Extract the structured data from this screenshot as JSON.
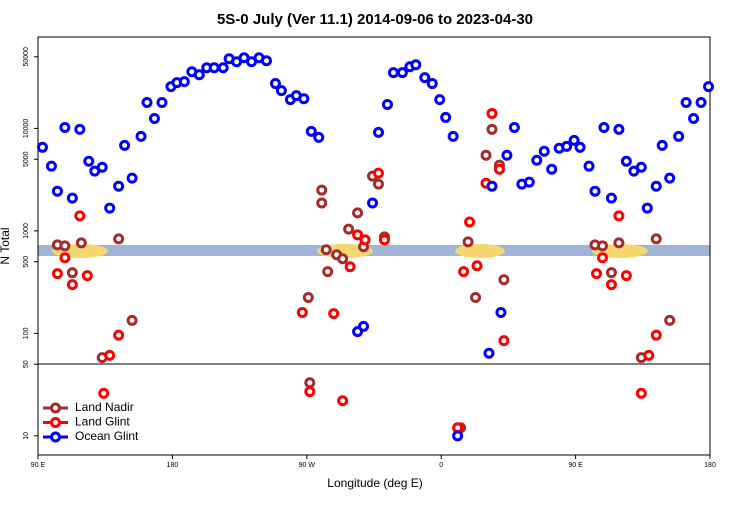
{
  "chart_data": {
    "type": "scatter",
    "title": "5S-0 July (Ver 11.1)   2014-09-06 to 2023-04-30",
    "xlabel": "Longitude (deg E)",
    "ylabel": "N Total",
    "xlim": [
      90,
      540
    ],
    "ylim": [
      6.5,
      78000
    ],
    "log_y": true,
    "xticks": [
      {
        "value": 90,
        "label": "90 E"
      },
      {
        "value": 180,
        "label": "180"
      },
      {
        "value": 270,
        "label": "90 W"
      },
      {
        "value": 360,
        "label": "0"
      },
      {
        "value": 450,
        "label": "90 E"
      },
      {
        "value": 540,
        "label": "180"
      }
    ],
    "yticks": [
      10,
      50,
      100,
      500,
      1000,
      5000,
      10000,
      50000
    ],
    "legend": "lower left",
    "series": [
      {
        "name": "Land Nadir",
        "color": "#a52a2a",
        "x": [
          103,
          108,
          113,
          119,
          133,
          144,
          153,
          271,
          272,
          280,
          280,
          283,
          284,
          290,
          294,
          298,
          304,
          308,
          314,
          318,
          322,
          373,
          378,
          383,
          390,
          394,
          399,
          402,
          463,
          468,
          474,
          479,
          494,
          504,
          513
        ],
        "values": [
          731,
          715,
          391,
          764,
          58,
          836,
          134,
          224,
          33,
          1870,
          2500,
          654,
          400,
          585,
          535,
          1040,
          1500,
          700,
          3420,
          2860,
          875,
          12,
          782,
          224,
          5470,
          9800,
          4380,
          334,
          731,
          715,
          391,
          764,
          58,
          836,
          134
        ]
      },
      {
        "name": "Land Glint",
        "color": "#ff0000",
        "x": [
          103,
          108,
          113,
          118,
          123,
          134,
          138,
          144,
          267,
          272,
          288,
          294,
          299,
          304,
          309,
          318,
          322,
          371,
          375,
          379,
          384,
          390,
          394,
          399,
          402,
          464,
          468,
          474,
          479,
          484,
          494,
          499,
          504
        ],
        "values": [
          383,
          547,
          299,
          1400,
          366,
          26,
          61,
          96,
          160,
          27,
          156,
          22,
          447,
          914,
          818,
          3660,
          818,
          12,
          400,
          1220,
          457,
          2920,
          14000,
          4000,
          85,
          383,
          547,
          299,
          1400,
          366,
          26,
          61,
          96
        ]
      },
      {
        "name": "Ocean Glint",
        "color": "#0000ff",
        "x": [
          93,
          99,
          103,
          108,
          113,
          118,
          124,
          128,
          133,
          138,
          144,
          148,
          153,
          159,
          163,
          168,
          173,
          179,
          183,
          188,
          193,
          198,
          203,
          208,
          214,
          218,
          223,
          228,
          233,
          238,
          243,
          249,
          253,
          259,
          263,
          268,
          273,
          278,
          304,
          308,
          314,
          318,
          324,
          328,
          334,
          339,
          343,
          349,
          354,
          359,
          363,
          368,
          371,
          392,
          394,
          400,
          404,
          409,
          414,
          419,
          424,
          429,
          434,
          439,
          444,
          449,
          453,
          459,
          463,
          469,
          474,
          479,
          484,
          489,
          494,
          498,
          504,
          508,
          513,
          519,
          524,
          529,
          534,
          539
        ],
        "values": [
          6540,
          4280,
          2440,
          10200,
          2090,
          9800,
          4780,
          3830,
          4180,
          1670,
          2730,
          6830,
          3270,
          8360,
          17900,
          12500,
          17900,
          25600,
          28000,
          28600,
          35700,
          33400,
          39100,
          39100,
          39100,
          47900,
          44700,
          48900,
          44700,
          48900,
          45700,
          27400,
          23400,
          19100,
          20900,
          19500,
          9350,
          8180,
          104,
          117,
          1870,
          9150,
          17100,
          35000,
          35000,
          40000,
          41800,
          31300,
          27400,
          19100,
          12800,
          8360,
          10,
          64,
          2730,
          160,
          5470,
          10200,
          2860,
          2990,
          4890,
          5980,
          4000,
          6400,
          6680,
          7640,
          6540,
          4280,
          2440,
          10200,
          2090,
          9800,
          4780,
          3830,
          4180,
          1670,
          2730,
          6830,
          3270,
          8360,
          17900,
          12500,
          17900,
          25600
        ]
      }
    ]
  }
}
